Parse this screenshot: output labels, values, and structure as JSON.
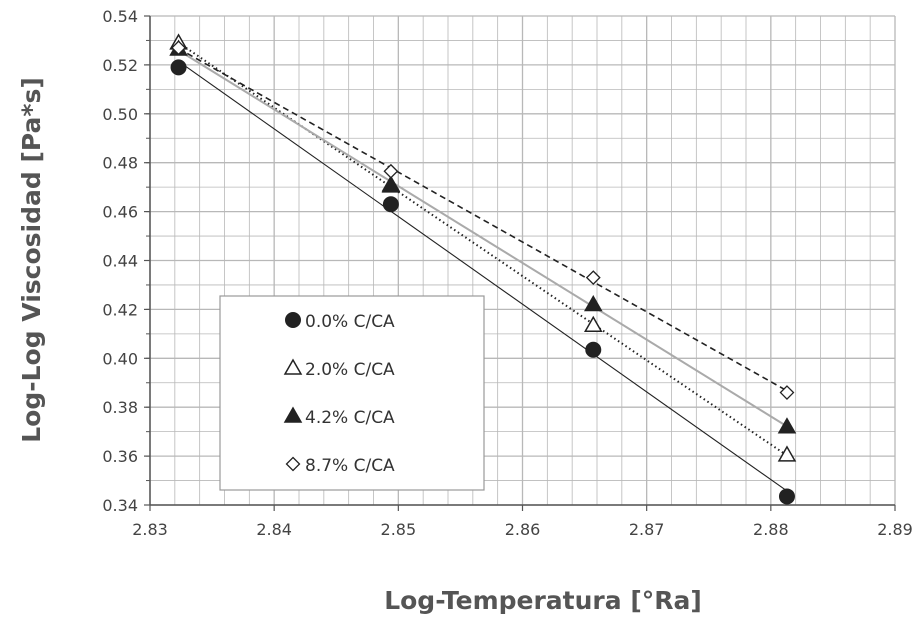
{
  "chart_data": {
    "type": "scatter",
    "xlabel": "Log-Temperatura [°Ra]",
    "ylabel": "Log-Log Viscosidad [Pa*s]",
    "xlim": [
      2.83,
      2.89
    ],
    "ylim": [
      0.34,
      0.54
    ],
    "x_ticks": [
      "2.83",
      "2.84",
      "2.85",
      "2.86",
      "2.87",
      "2.88",
      "2.89"
    ],
    "y_ticks": [
      "0.34",
      "0.36",
      "0.38",
      "0.40",
      "0.42",
      "0.44",
      "0.46",
      "0.48",
      "0.50",
      "0.52",
      "0.54"
    ],
    "grid": true,
    "legend_position": "lower-left",
    "series": [
      {
        "name": "0.0% C/CA",
        "marker": "filled-circle",
        "line": "solid-thin-black",
        "color": "#222222",
        "x": [
          2.8323,
          2.8494,
          2.8657,
          2.8813
        ],
        "y": [
          0.519,
          0.463,
          0.4035,
          0.3435
        ]
      },
      {
        "name": "2.0% C/CA",
        "marker": "open-triangle",
        "line": "dotted-black",
        "color": "#222222",
        "x": [
          2.8323,
          2.8494,
          2.8657,
          2.8813
        ],
        "y": [
          0.529,
          0.4705,
          0.4135,
          0.3605
        ]
      },
      {
        "name": "4.2% C/CA",
        "marker": "filled-triangle",
        "line": "solid-gray",
        "color": "#aaaaaa",
        "x": [
          2.8323,
          2.8494,
          2.8657,
          2.8813
        ],
        "y": [
          0.5265,
          0.471,
          0.422,
          0.372
        ]
      },
      {
        "name": "8.7% C/CA",
        "marker": "open-diamond",
        "line": "dashed-black",
        "color": "#222222",
        "x": [
          2.8323,
          2.8494,
          2.8657,
          2.8813
        ],
        "y": [
          0.527,
          0.4765,
          0.433,
          0.386
        ]
      }
    ]
  }
}
